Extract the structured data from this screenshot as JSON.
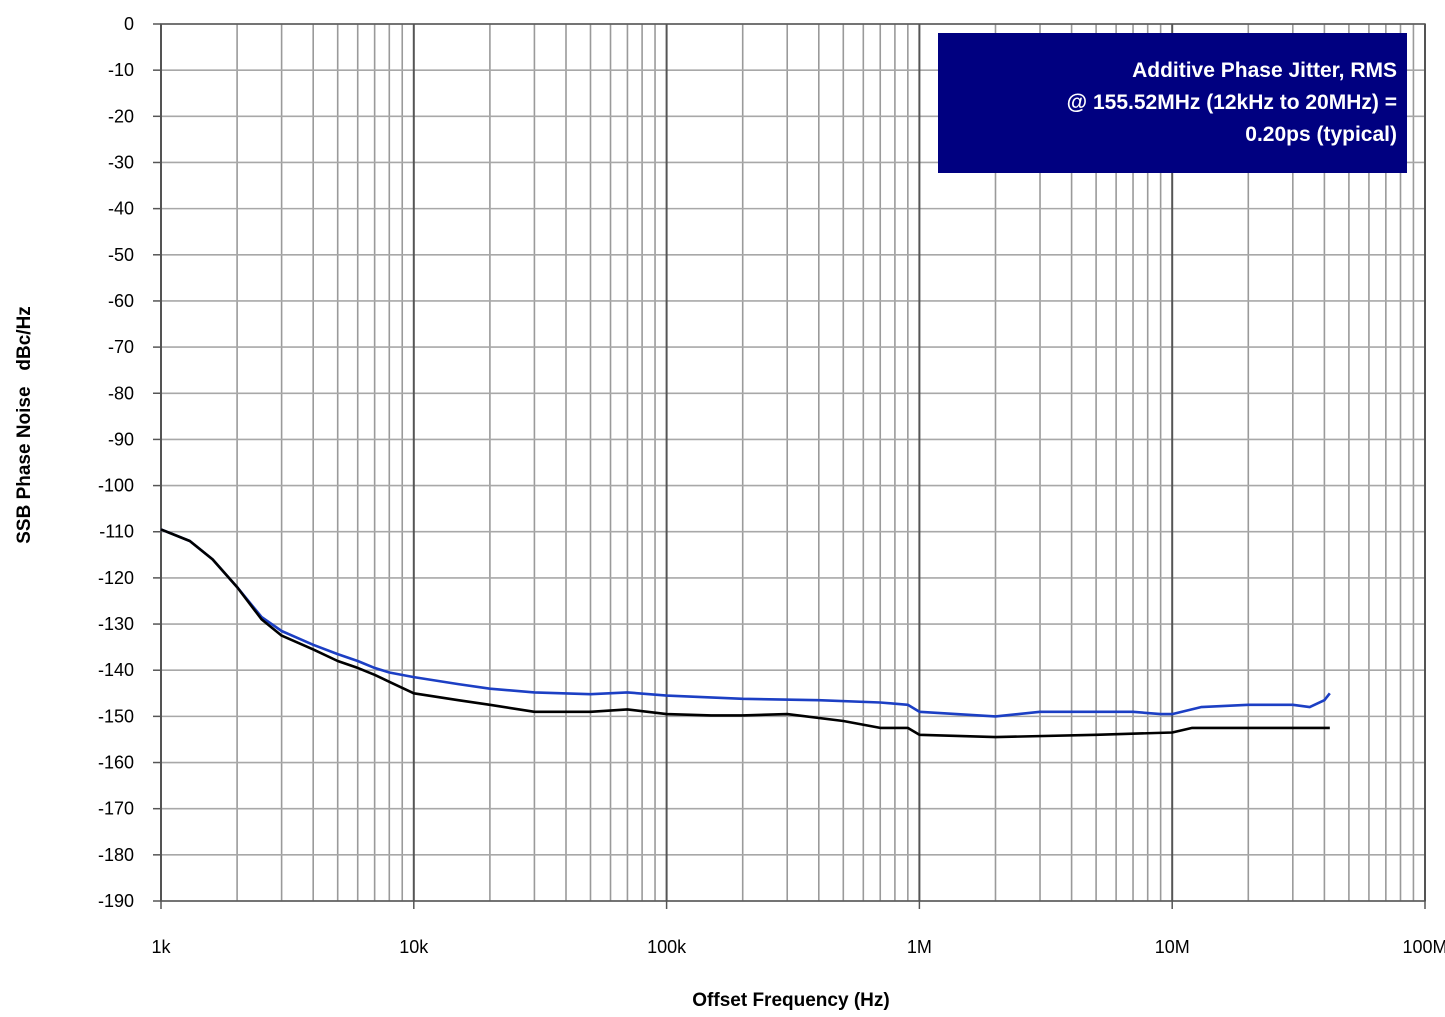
{
  "chart_data": {
    "type": "line",
    "xlabel": "Offset Frequency (Hz)",
    "ylabel": "SSB Phase Noise   dBc/Hz",
    "x_scale": "log",
    "xlim": [
      1000,
      100000000
    ],
    "ylim": [
      -190,
      0
    ],
    "x_ticks": [
      {
        "value": 1000,
        "label": "1k"
      },
      {
        "value": 10000,
        "label": "10k"
      },
      {
        "value": 100000,
        "label": "100k"
      },
      {
        "value": 1000000,
        "label": "1M"
      },
      {
        "value": 10000000,
        "label": "10M"
      },
      {
        "value": 100000000,
        "label": "100M"
      }
    ],
    "y_ticks": [
      0,
      -10,
      -20,
      -30,
      -40,
      -50,
      -60,
      -70,
      -80,
      -90,
      -100,
      -110,
      -120,
      -130,
      -140,
      -150,
      -160,
      -170,
      -180,
      -190
    ],
    "grid": true,
    "annotation": {
      "lines": [
        "Additive Phase Jitter, RMS",
        "@ 155.52MHz (12kHz to 20MHz) =",
        "0.20ps (typical)"
      ],
      "placement": "top-right",
      "background": "#000080",
      "color": "#ffffff"
    },
    "series": [
      {
        "color": "#1c3fc4",
        "points": [
          [
            1000,
            -109.5
          ],
          [
            1300,
            -112
          ],
          [
            1600,
            -116
          ],
          [
            2000,
            -122
          ],
          [
            2500,
            -128.5
          ],
          [
            3000,
            -131.5
          ],
          [
            4000,
            -134.5
          ],
          [
            5000,
            -136.5
          ],
          [
            6000,
            -138
          ],
          [
            7000,
            -139.5
          ],
          [
            8000,
            -140.5
          ],
          [
            10000,
            -141.5
          ],
          [
            15000,
            -143
          ],
          [
            20000,
            -144
          ],
          [
            30000,
            -144.8
          ],
          [
            50000,
            -145.2
          ],
          [
            70000,
            -144.8
          ],
          [
            100000,
            -145.5
          ],
          [
            200000,
            -146.2
          ],
          [
            400000,
            -146.5
          ],
          [
            700000,
            -147
          ],
          [
            900000,
            -147.5
          ],
          [
            1000000,
            -149
          ],
          [
            2000000,
            -150
          ],
          [
            3000000,
            -149
          ],
          [
            5000000,
            -149
          ],
          [
            7000000,
            -149
          ],
          [
            9000000,
            -149.5
          ],
          [
            10000000,
            -149.5
          ],
          [
            13000000,
            -148
          ],
          [
            20000000,
            -147.5
          ],
          [
            30000000,
            -147.5
          ],
          [
            35000000,
            -148
          ],
          [
            40000000,
            -146.5
          ],
          [
            42000000,
            -145
          ]
        ]
      },
      {
        "color": "#000000",
        "points": [
          [
            1000,
            -109.5
          ],
          [
            1300,
            -112
          ],
          [
            1600,
            -116
          ],
          [
            2000,
            -122
          ],
          [
            2500,
            -129
          ],
          [
            3000,
            -132.5
          ],
          [
            4000,
            -135.5
          ],
          [
            5000,
            -138
          ],
          [
            6000,
            -139.5
          ],
          [
            7000,
            -141
          ],
          [
            8000,
            -142.5
          ],
          [
            10000,
            -145
          ],
          [
            15000,
            -146.5
          ],
          [
            20000,
            -147.5
          ],
          [
            30000,
            -149
          ],
          [
            50000,
            -149
          ],
          [
            70000,
            -148.5
          ],
          [
            100000,
            -149.5
          ],
          [
            150000,
            -149.8
          ],
          [
            200000,
            -149.8
          ],
          [
            300000,
            -149.5
          ],
          [
            500000,
            -151
          ],
          [
            700000,
            -152.5
          ],
          [
            900000,
            -152.5
          ],
          [
            1000000,
            -154
          ],
          [
            2000000,
            -154.5
          ],
          [
            5000000,
            -154
          ],
          [
            10000000,
            -153.5
          ],
          [
            12000000,
            -152.5
          ],
          [
            20000000,
            -152.5
          ],
          [
            30000000,
            -152.5
          ],
          [
            42000000,
            -152.5
          ]
        ]
      }
    ]
  }
}
